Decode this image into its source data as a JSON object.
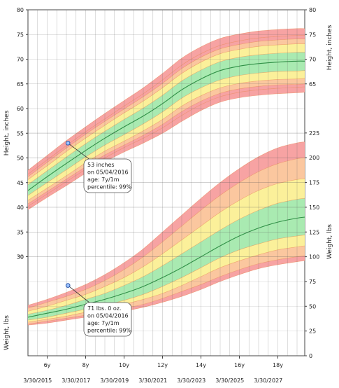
{
  "chart_data": {
    "type": "area",
    "title": "",
    "x_tick_labels_top": [
      "6y",
      "8y",
      "10y",
      "12y",
      "14y",
      "16y",
      "18y"
    ],
    "x_tick_labels_bottom": [
      "3/30/2015",
      "3/30/2017",
      "3/30/2019",
      "3/30/2021",
      "3/30/2023",
      "3/30/2025",
      "3/30/2027"
    ],
    "x_tick_ages": [
      6,
      8,
      10,
      12,
      14,
      16,
      18
    ],
    "xlim_age": [
      5,
      19.4
    ],
    "grid": true,
    "band_colors": [
      "#f7a3a3",
      "#fbc79f",
      "#fbf09a",
      "#a9eab1"
    ],
    "median_color": "#2f9046",
    "height": {
      "ylabel_left": "Height, inches",
      "ylabel_right": "Height, inches",
      "left_ticks": [
        "80",
        "75",
        "70",
        "65",
        "60",
        "55",
        "50",
        "45",
        "40",
        "35",
        "30"
      ],
      "right_ticks": [
        "80",
        "75",
        "70",
        "65"
      ],
      "ylim_left_scale": [
        30,
        80
      ],
      "ages": [
        5,
        6,
        7,
        8,
        9,
        10,
        11,
        12,
        13,
        14,
        15,
        16,
        17,
        18,
        19,
        19.4
      ],
      "percentile_curves": [
        {
          "p": "1",
          "values": [
            39.5,
            42.0,
            44.4,
            46.9,
            49.2,
            51.2,
            53.0,
            55.0,
            57.4,
            59.6,
            61.3,
            62.2,
            62.7,
            63.0,
            63.2,
            63.3
          ]
        },
        {
          "p": "3",
          "values": [
            40.2,
            42.7,
            45.2,
            47.7,
            50.0,
            52.1,
            54.0,
            56.1,
            58.6,
            60.8,
            62.4,
            63.3,
            63.8,
            64.1,
            64.3,
            64.4
          ]
        },
        {
          "p": "5",
          "values": [
            40.7,
            43.2,
            45.7,
            48.2,
            50.6,
            52.6,
            54.6,
            56.8,
            59.4,
            61.5,
            63.1,
            64.0,
            64.5,
            64.8,
            64.9,
            65.0
          ]
        },
        {
          "p": "10",
          "values": [
            41.4,
            43.9,
            46.4,
            49.0,
            51.4,
            53.4,
            55.5,
            57.8,
            60.5,
            62.6,
            64.2,
            65.1,
            65.6,
            65.9,
            66.0,
            66.1
          ]
        },
        {
          "p": "25",
          "values": [
            42.4,
            45.0,
            47.6,
            50.2,
            52.6,
            54.7,
            56.9,
            59.3,
            62.1,
            64.2,
            65.8,
            66.7,
            67.2,
            67.5,
            67.6,
            67.7
          ]
        },
        {
          "p": "50",
          "values": [
            43.4,
            46.2,
            48.9,
            51.5,
            54.0,
            56.3,
            58.5,
            61.0,
            63.8,
            66.0,
            67.7,
            68.6,
            69.1,
            69.4,
            69.6,
            69.6
          ]
        },
        {
          "p": "75",
          "values": [
            44.6,
            47.4,
            50.2,
            52.9,
            55.4,
            57.8,
            60.1,
            62.7,
            65.6,
            67.8,
            69.5,
            70.4,
            70.9,
            71.2,
            71.4,
            71.4
          ]
        },
        {
          "p": "90",
          "values": [
            45.6,
            48.4,
            51.3,
            54.0,
            56.6,
            59.1,
            61.5,
            64.2,
            67.1,
            69.4,
            71.1,
            72.0,
            72.6,
            72.9,
            73.1,
            73.1
          ]
        },
        {
          "p": "95",
          "values": [
            46.2,
            49.1,
            52.0,
            54.8,
            57.4,
            59.9,
            62.4,
            65.1,
            68.1,
            70.4,
            72.1,
            73.0,
            73.6,
            73.9,
            74.1,
            74.1
          ]
        },
        {
          "p": "97",
          "values": [
            46.7,
            49.6,
            52.5,
            55.3,
            57.9,
            60.5,
            63.0,
            65.8,
            68.8,
            71.1,
            72.8,
            73.7,
            74.3,
            74.6,
            74.8,
            74.8
          ]
        },
        {
          "p": "99",
          "values": [
            47.5,
            50.5,
            53.5,
            56.3,
            59.0,
            61.6,
            64.2,
            67.1,
            70.2,
            72.5,
            74.2,
            75.1,
            75.7,
            76.0,
            76.2,
            76.2
          ]
        }
      ],
      "patient_point": {
        "age": 7.08,
        "value": 53
      },
      "callout": [
        "53 inches",
        "on 05/04/2016",
        "age: 7y/1m",
        "percentile: 99%"
      ]
    },
    "weight": {
      "ylabel_left": "Weight, lbs",
      "ylabel_right": "Weight, lbs",
      "left_ticks": [
        "30"
      ],
      "right_ticks": [
        "225",
        "200",
        "175",
        "150",
        "125",
        "100",
        "75",
        "50",
        "25",
        "0"
      ],
      "ylim": [
        0,
        225
      ],
      "ages": [
        5,
        6,
        7,
        8,
        9,
        10,
        11,
        12,
        13,
        14,
        15,
        16,
        17,
        18,
        19,
        19.4
      ],
      "percentile_curves": [
        {
          "p": "1",
          "values": [
            31,
            33,
            36,
            39,
            42,
            45,
            49,
            54,
            60,
            67,
            75,
            82,
            88,
            92,
            95,
            96
          ]
        },
        {
          "p": "3",
          "values": [
            32,
            35,
            38,
            41,
            44,
            48,
            52,
            58,
            65,
            72,
            80,
            87,
            93,
            97,
            100,
            101
          ]
        },
        {
          "p": "10",
          "values": [
            34,
            37,
            40,
            44,
            47,
            52,
            57,
            63,
            71,
            80,
            89,
            96,
            102,
            107,
            110,
            111
          ]
        },
        {
          "p": "25",
          "values": [
            36,
            39,
            43,
            47,
            51,
            56,
            62,
            70,
            79,
            89,
            99,
            107,
            113,
            118,
            121,
            122
          ]
        },
        {
          "p": "50",
          "values": [
            39,
            43,
            47,
            52,
            57,
            63,
            70,
            79,
            89,
            100,
            111,
            121,
            129,
            135,
            139,
            140
          ]
        },
        {
          "p": "75",
          "values": [
            42,
            46,
            51,
            57,
            63,
            71,
            80,
            91,
            103,
            115,
            127,
            138,
            147,
            154,
            158,
            159
          ]
        },
        {
          "p": "90",
          "values": [
            45,
            50,
            56,
            62,
            70,
            79,
            90,
            103,
            117,
            131,
            145,
            157,
            167,
            174,
            178,
            179
          ]
        },
        {
          "p": "97",
          "values": [
            48,
            54,
            60,
            67,
            76,
            87,
            100,
            115,
            131,
            147,
            162,
            175,
            186,
            194,
            199,
            200
          ]
        },
        {
          "p": "99",
          "values": [
            51,
            57,
            64,
            72,
            82,
            94,
            108,
            125,
            142,
            159,
            175,
            189,
            201,
            210,
            215,
            216
          ]
        }
      ],
      "patient_point": {
        "age": 7.08,
        "value": 71
      },
      "callout": [
        "71 lbs. 0 oz.",
        "on 05/04/2016",
        "age: 7y/1m",
        "percentile: 99%"
      ]
    }
  }
}
